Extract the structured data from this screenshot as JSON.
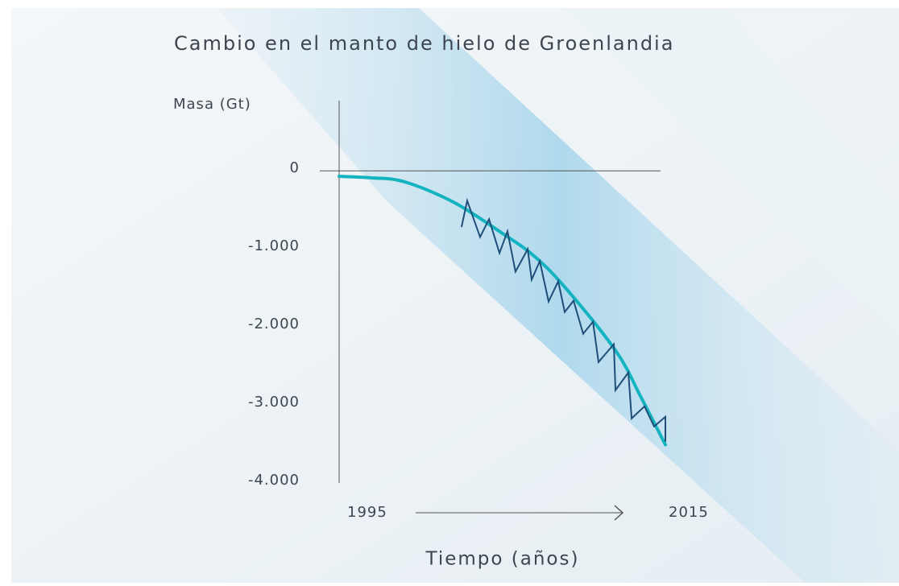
{
  "chart_data": {
    "type": "line",
    "title": "Cambio en el manto de hielo de Groenlandia",
    "y_label": "Masa (Gt)",
    "x_label": "Tiempo (años)",
    "xlim": [
      1995,
      2015
    ],
    "xticks": [
      1995,
      2015
    ],
    "ylim": [
      -4000,
      900
    ],
    "yticks": [
      0,
      {
        "value": -1000,
        "label": "-1.000"
      },
      {
        "value": -2000,
        "label": "-2.000"
      },
      {
        "value": -3000,
        "label": "-3.000"
      },
      {
        "value": -4000,
        "label": "-4.000"
      }
    ],
    "series": [
      {
        "color": "#13b3bf",
        "smooth": true,
        "x": [
          1995,
          1997,
          1999,
          2002,
          2005,
          2007,
          2009,
          2012,
          2013.5,
          2015
        ],
        "values": [
          -70,
          -90,
          -140,
          -400,
          -800,
          -1100,
          -1530,
          -2320,
          -2900,
          -3510
        ]
      },
      {
        "color": "#1f4e79",
        "smooth": false,
        "x": [
          2002.51,
          2002.85,
          2003.64,
          2004.19,
          2004.83,
          2005.32,
          2005.81,
          2006.56,
          2006.8,
          2007.3,
          2007.84,
          2008.43,
          2008.83,
          2009.37,
          2009.96,
          2010.56,
          2010.9,
          2011.84,
          2011.94,
          2012.73,
          2012.93,
          2013.72,
          2014.31,
          2015,
          2015
        ],
        "values": [
          -713,
          -382,
          -848,
          -620,
          -1054,
          -775,
          -1292,
          -1003,
          -1395,
          -1158,
          -1674,
          -1416,
          -1809,
          -1664,
          -2088,
          -1933,
          -2450,
          -2222,
          -2811,
          -2584,
          -3173,
          -3018,
          -3276,
          -3152,
          -3463
        ]
      }
    ]
  }
}
